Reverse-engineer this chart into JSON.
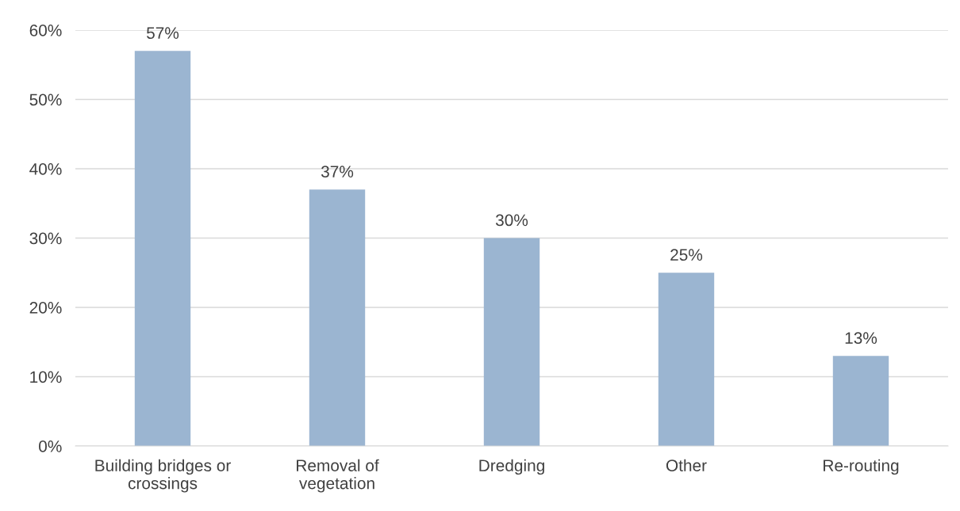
{
  "chart_data": {
    "type": "bar",
    "categories": [
      "Building bridges or\ncrossings",
      "Removal of\nvegetation",
      "Dredging",
      "Other",
      "Re-routing"
    ],
    "values": [
      57,
      37,
      30,
      25,
      13
    ],
    "color": "#9bb5d1",
    "data_labels": true,
    "value_labels": [
      "57%",
      "37%",
      "30%",
      "25%",
      "13%"
    ],
    "ylim": [
      0,
      60
    ],
    "yticks": [
      {
        "value": 0,
        "label": "0%"
      },
      {
        "value": 10,
        "label": "10%"
      },
      {
        "value": 20,
        "label": "20%"
      },
      {
        "value": 30,
        "label": "30%"
      },
      {
        "value": 40,
        "label": "40%"
      },
      {
        "value": 50,
        "label": "50%"
      },
      {
        "value": 60,
        "label": "60%"
      }
    ],
    "grid": "y",
    "legend": false
  }
}
